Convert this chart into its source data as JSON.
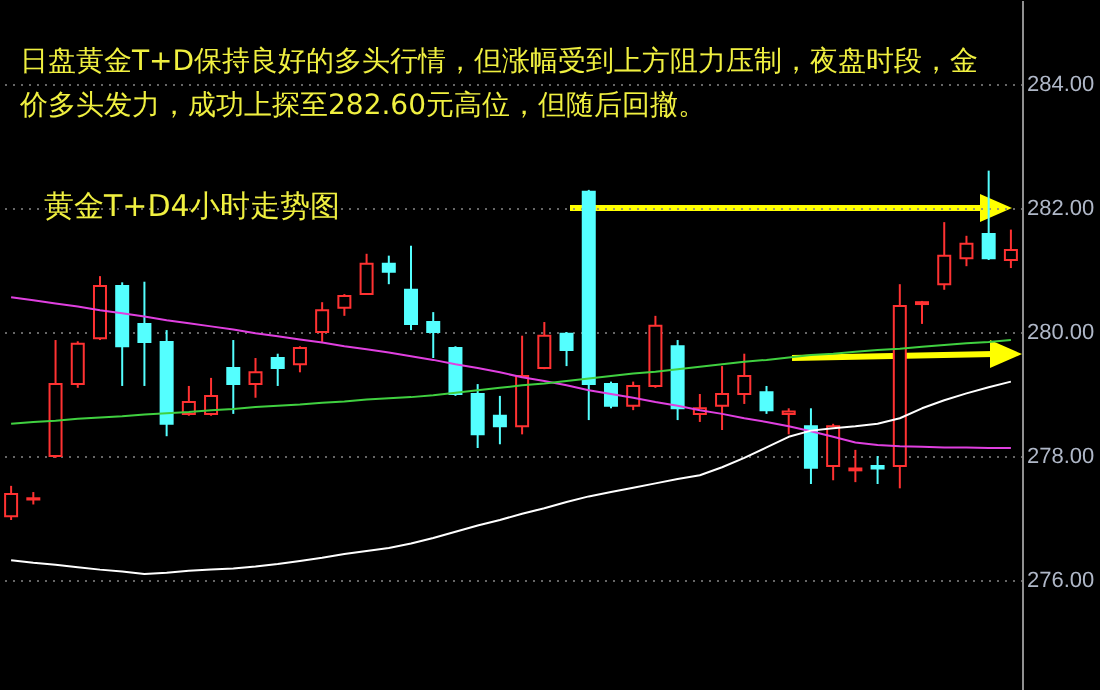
{
  "chart_data": {
    "type": "candlestick",
    "title": "日盘黄金T+D保持良好的多头行情，但涨幅受到上方阻力压制，夜盘时段，金价多头发力，成功上探至282.60元高位，但随后回撤。",
    "subtitle": "黄金T+D4小时走势图",
    "categories": [
      null,
      null,
      null,
      null,
      null,
      null,
      null,
      null,
      null,
      null,
      null,
      null,
      null,
      null,
      null,
      null,
      null,
      null,
      null,
      null,
      null,
      null,
      null,
      null,
      null,
      null,
      null,
      null,
      null,
      null,
      null,
      null,
      null,
      null,
      null,
      null,
      null,
      null,
      null,
      null,
      null,
      null,
      null,
      null,
      null,
      null
    ],
    "ohlc": [
      [
        277.03,
        277.52,
        276.97,
        277.39
      ],
      [
        277.3,
        277.42,
        277.22,
        277.32
      ],
      [
        278.0,
        279.87,
        277.97,
        279.16
      ],
      [
        279.16,
        279.85,
        279.1,
        279.81
      ],
      [
        279.9,
        280.9,
        279.87,
        280.74
      ],
      [
        280.74,
        280.8,
        279.13,
        279.77
      ],
      [
        280.13,
        280.81,
        279.13,
        279.84
      ],
      [
        279.84,
        280.03,
        278.32,
        278.52
      ],
      [
        278.68,
        279.13,
        278.65,
        278.87
      ],
      [
        278.68,
        279.26,
        278.65,
        278.97
      ],
      [
        279.42,
        279.87,
        278.68,
        279.16
      ],
      [
        279.16,
        279.58,
        278.94,
        279.35
      ],
      [
        279.58,
        279.65,
        279.13,
        279.42
      ],
      [
        279.48,
        279.77,
        279.35,
        279.74
      ],
      [
        280.0,
        280.48,
        279.84,
        280.35
      ],
      [
        280.39,
        280.61,
        280.26,
        280.58
      ],
      [
        280.61,
        281.26,
        280.6,
        281.1
      ],
      [
        281.1,
        281.23,
        280.77,
        280.97
      ],
      [
        280.68,
        281.39,
        280.03,
        280.13
      ],
      [
        280.16,
        280.32,
        279.58,
        280.0
      ],
      [
        279.74,
        279.77,
        278.97,
        279.0
      ],
      [
        279.0,
        279.16,
        278.13,
        278.35
      ],
      [
        278.65,
        278.97,
        278.19,
        278.48
      ],
      [
        278.48,
        279.94,
        278.35,
        279.29
      ],
      [
        279.42,
        280.16,
        279.4,
        279.94
      ],
      [
        279.97,
        280.0,
        279.45,
        279.71
      ],
      [
        282.26,
        282.29,
        278.58,
        279.16
      ],
      [
        279.16,
        279.2,
        278.77,
        278.81
      ],
      [
        278.81,
        279.2,
        278.74,
        279.13
      ],
      [
        279.13,
        280.26,
        279.1,
        280.1
      ],
      [
        279.77,
        279.87,
        278.58,
        278.77
      ],
      [
        278.68,
        279.0,
        278.55,
        278.77
      ],
      [
        278.81,
        279.45,
        278.42,
        279.0
      ],
      [
        279.0,
        279.65,
        278.84,
        279.29
      ],
      [
        279.03,
        279.13,
        278.68,
        278.74
      ],
      [
        278.68,
        278.77,
        278.35,
        278.72
      ],
      [
        278.48,
        278.77,
        277.55,
        277.81
      ],
      [
        277.84,
        278.52,
        277.61,
        278.48
      ],
      [
        277.77,
        278.1,
        277.58,
        277.8
      ],
      [
        277.84,
        278.0,
        277.55,
        277.8
      ],
      [
        277.84,
        280.77,
        277.48,
        280.42
      ],
      [
        280.45,
        280.5,
        280.13,
        280.48
      ],
      [
        280.77,
        281.77,
        280.68,
        281.23
      ],
      [
        281.19,
        281.55,
        281.06,
        281.42
      ],
      [
        281.58,
        282.6,
        281.16,
        281.19
      ],
      [
        281.16,
        281.65,
        281.03,
        281.32
      ]
    ],
    "colors": [
      "#ff3232",
      "#ff3232",
      "#ff3232",
      "#ff3232",
      "#ff3232",
      "#54ffff",
      "#54ffff",
      "#54ffff",
      "#ff3232",
      "#ff3232",
      "#54ffff",
      "#ff3232",
      "#54ffff",
      "#ff3232",
      "#ff3232",
      "#ff3232",
      "#ff3232",
      "#54ffff",
      "#54ffff",
      "#54ffff",
      "#54ffff",
      "#54ffff",
      "#54ffff",
      "#ff3232",
      "#ff3232",
      "#54ffff",
      "#54ffff",
      "#54ffff",
      "#ff3232",
      "#ff3232",
      "#54ffff",
      "#ff3232",
      "#ff3232",
      "#ff3232",
      "#54ffff",
      "#ff3232",
      "#54ffff",
      "#ff3232",
      "#ff3232",
      "#54ffff",
      "#ff3232",
      "#ff3232",
      "#ff3232",
      "#ff3232",
      "#54ffff",
      "#ff3232"
    ],
    "series": [
      {
        "type": "line",
        "color": "#e040e0",
        "values": [
          280.56,
          280.51,
          280.46,
          280.41,
          280.35,
          280.3,
          280.25,
          280.19,
          280.14,
          280.09,
          280.04,
          279.98,
          279.93,
          279.88,
          279.83,
          279.77,
          279.72,
          279.67,
          279.61,
          279.55,
          279.48,
          279.42,
          279.35,
          279.27,
          279.21,
          279.14,
          279.06,
          279.0,
          278.94,
          278.87,
          278.81,
          278.74,
          278.68,
          278.61,
          278.55,
          278.48,
          278.4,
          278.31,
          278.22,
          278.18,
          278.16,
          278.15,
          278.14,
          278.14,
          278.13,
          278.13
        ]
      },
      {
        "type": "line",
        "color": "#40d040",
        "values": [
          278.52,
          278.55,
          278.57,
          278.6,
          278.62,
          278.64,
          278.67,
          278.69,
          278.71,
          278.74,
          278.76,
          278.79,
          278.81,
          278.83,
          278.86,
          278.88,
          278.91,
          278.93,
          278.95,
          278.98,
          279.02,
          279.06,
          279.1,
          279.14,
          279.17,
          279.21,
          279.25,
          279.29,
          279.33,
          279.36,
          279.4,
          279.44,
          279.48,
          279.52,
          279.55,
          279.59,
          279.63,
          279.65,
          279.68,
          279.71,
          279.73,
          279.76,
          279.79,
          279.82,
          279.84,
          279.87
        ]
      },
      {
        "type": "line",
        "color": "#ffffff",
        "values": [
          276.32,
          276.28,
          276.25,
          276.21,
          276.17,
          276.14,
          276.1,
          276.12,
          276.15,
          276.17,
          276.19,
          276.22,
          276.26,
          276.31,
          276.36,
          276.42,
          276.47,
          276.52,
          276.59,
          276.68,
          276.78,
          276.88,
          276.97,
          277.07,
          277.16,
          277.26,
          277.35,
          277.42,
          277.49,
          277.56,
          277.63,
          277.69,
          277.82,
          277.97,
          278.14,
          278.31,
          278.41,
          278.45,
          278.48,
          278.52,
          278.61,
          278.77,
          278.9,
          279.01,
          279.11,
          279.2
        ]
      }
    ],
    "ylim": [
      274.23,
      285.35
    ],
    "yticks": [
      {
        "value": 276,
        "label": "276.00"
      },
      {
        "value": 278,
        "label": "278.00"
      },
      {
        "value": 280,
        "label": "280.00"
      },
      {
        "value": 282,
        "label": "282.00"
      },
      {
        "value": 284,
        "label": "284.00"
      }
    ],
    "grid": "y",
    "tick_labels": "y"
  }
}
